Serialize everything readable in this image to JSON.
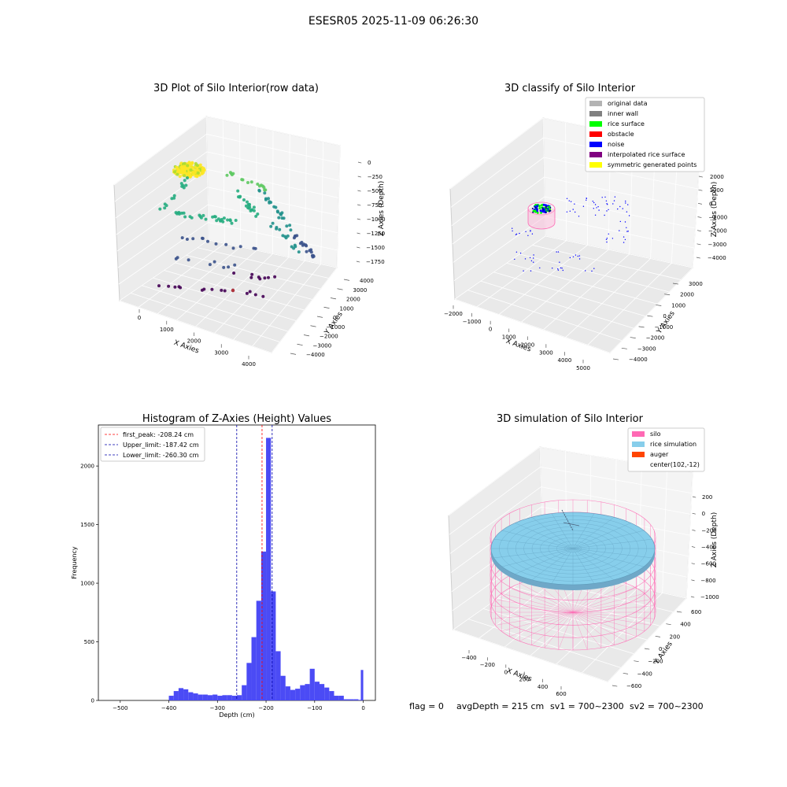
{
  "figure": {
    "suptitle": "ESESR05 2025-11-09 06:26:30",
    "status_line": {
      "flag": "flag = 0",
      "avg_depth": "avgDepth = 215 cm",
      "sv1": "sv1 = 700~2300",
      "sv2": "sv2 = 700~2300"
    }
  },
  "colors": {
    "hist_bar": "#4b4bf5",
    "first_peak": "#ff0000",
    "limits": "#0000aa",
    "silo": "#ff69b4",
    "rice": "#87ceeb",
    "auger": "#ff4500",
    "pane": "#f2f2f2"
  },
  "chart_data": [
    {
      "type": "scatter",
      "projection": "3d",
      "title": "3D Plot of Silo Interior(row data)",
      "xlabel": "X Axies",
      "ylabel": "Y Axies",
      "zlabel": "Z Axies (Depth)",
      "x_ticks": [
        "0",
        "1000",
        "2000",
        "3000",
        "4000"
      ],
      "y_ticks": [
        "−4000",
        "−3000",
        "−2000",
        "−1000",
        "0",
        "1000",
        "2000",
        "3000",
        "4000"
      ],
      "z_ticks": [
        "0",
        "−250",
        "−500",
        "−750",
        "−1000",
        "−1250",
        "−1500",
        "−1750"
      ],
      "xlim": [
        -500,
        4500
      ],
      "ylim": [
        -4500,
        4500
      ],
      "zlim": [
        -1900,
        100
      ],
      "colormap": "viridis",
      "grid": true
    },
    {
      "type": "scatter",
      "projection": "3d",
      "title": "3D classify of Silo Interior",
      "xlabel": "X Axies",
      "ylabel": "Y Axies",
      "zlabel": "Z Axies (Depth)",
      "x_ticks": [
        "−2000",
        "−1000",
        "0",
        "1000",
        "2000",
        "3000",
        "4000",
        "5000"
      ],
      "y_ticks": [
        "−4000",
        "−3000",
        "−2000",
        "−1000",
        "0",
        "1000",
        "2000",
        "3000"
      ],
      "z_ticks": [
        "2000",
        "1000",
        "0",
        "−1000",
        "−2000",
        "−3000",
        "−4000"
      ],
      "xlim": [
        -2000,
        5500
      ],
      "ylim": [
        -4500,
        3500
      ],
      "zlim": [
        -4500,
        2500
      ],
      "legend": [
        {
          "label": "original data",
          "color": "#b3b3b3"
        },
        {
          "label": "inner wall",
          "color": "#808080"
        },
        {
          "label": "rice surface",
          "color": "#00ff00"
        },
        {
          "label": "obstacle",
          "color": "#ff0000"
        },
        {
          "label": "noise",
          "color": "#0000ff"
        },
        {
          "label": "interpolated rice surface",
          "color": "#800080"
        },
        {
          "label": "symmetric generated points",
          "color": "#ffff00"
        }
      ],
      "legend_position": "top-right",
      "grid": true
    },
    {
      "type": "bar",
      "subtype": "histogram",
      "title": "Histogram of Z-Axies (Height) Values",
      "xlabel": "Depth (cm)",
      "ylabel": "Frequency",
      "xlim": [
        -545,
        25
      ],
      "ylim": [
        0,
        2350
      ],
      "x_ticks": [
        -500,
        -400,
        -300,
        -200,
        -100,
        0
      ],
      "y_ticks": [
        0,
        500,
        1000,
        1500,
        2000
      ],
      "x_tick_labels": [
        "−500",
        "−400",
        "−300",
        "−200",
        "−100",
        "0"
      ],
      "y_tick_labels": [
        "0",
        "500",
        "1000",
        "1500",
        "2000"
      ],
      "bin_width": 10,
      "bins": [
        {
          "x0": -400,
          "count": 40
        },
        {
          "x0": -390,
          "count": 80
        },
        {
          "x0": -380,
          "count": 105
        },
        {
          "x0": -370,
          "count": 95
        },
        {
          "x0": -360,
          "count": 70
        },
        {
          "x0": -350,
          "count": 60
        },
        {
          "x0": -340,
          "count": 50
        },
        {
          "x0": -330,
          "count": 50
        },
        {
          "x0": -320,
          "count": 45
        },
        {
          "x0": -310,
          "count": 50
        },
        {
          "x0": -300,
          "count": 40
        },
        {
          "x0": -290,
          "count": 45
        },
        {
          "x0": -280,
          "count": 45
        },
        {
          "x0": -270,
          "count": 40
        },
        {
          "x0": -260,
          "count": 45
        },
        {
          "x0": -250,
          "count": 130
        },
        {
          "x0": -240,
          "count": 320
        },
        {
          "x0": -230,
          "count": 540
        },
        {
          "x0": -220,
          "count": 850
        },
        {
          "x0": -210,
          "count": 1270
        },
        {
          "x0": -200,
          "count": 2240
        },
        {
          "x0": -190,
          "count": 930
        },
        {
          "x0": -180,
          "count": 420
        },
        {
          "x0": -170,
          "count": 210
        },
        {
          "x0": -160,
          "count": 120
        },
        {
          "x0": -150,
          "count": 90
        },
        {
          "x0": -140,
          "count": 100
        },
        {
          "x0": -130,
          "count": 130
        },
        {
          "x0": -120,
          "count": 140
        },
        {
          "x0": -110,
          "count": 270
        },
        {
          "x0": -100,
          "count": 160
        },
        {
          "x0": -90,
          "count": 140
        },
        {
          "x0": -80,
          "count": 110
        },
        {
          "x0": -70,
          "count": 80
        },
        {
          "x0": -60,
          "count": 40
        },
        {
          "x0": -50,
          "count": 40
        },
        {
          "x0": -40,
          "count": 10
        },
        {
          "x0": -30,
          "count": 10
        },
        {
          "x0": -20,
          "count": 10
        },
        {
          "x0": -10,
          "count": 5
        },
        {
          "x0": -5,
          "count": 260
        }
      ],
      "vlines": [
        {
          "x": -208.24,
          "label": "first_peak: -208.24 cm",
          "color": "#ff0000"
        },
        {
          "x": -187.42,
          "label": "Upper_limit: -187.42 cm",
          "color": "#0000aa"
        },
        {
          "x": -260.3,
          "label": "Lower_limit: -260.30 cm",
          "color": "#0000aa"
        }
      ],
      "legend_position": "top-left",
      "grid": false
    },
    {
      "type": "surface",
      "projection": "3d",
      "title": "3D simulation of Silo Interior",
      "xlabel": "X Axies",
      "ylabel": "Y Axies",
      "zlabel": "Z Axies (Depth)",
      "x_ticks": [
        "−400",
        "−200",
        "0",
        "200",
        "400",
        "600"
      ],
      "y_ticks": [
        "−600",
        "−400",
        "−200",
        "0",
        "200",
        "400",
        "600"
      ],
      "z_ticks": [
        "200",
        "0",
        "−200",
        "−400",
        "−600",
        "−800",
        "−1000"
      ],
      "legend": [
        {
          "label": "silo",
          "color": "#ff69b4"
        },
        {
          "label": "rice simulation",
          "color": "#87ceeb"
        },
        {
          "label": "auger",
          "color": "#ff4500"
        },
        {
          "label": "center(102,-12)",
          "color": ""
        }
      ],
      "legend_position": "top-right",
      "grid": true
    }
  ]
}
